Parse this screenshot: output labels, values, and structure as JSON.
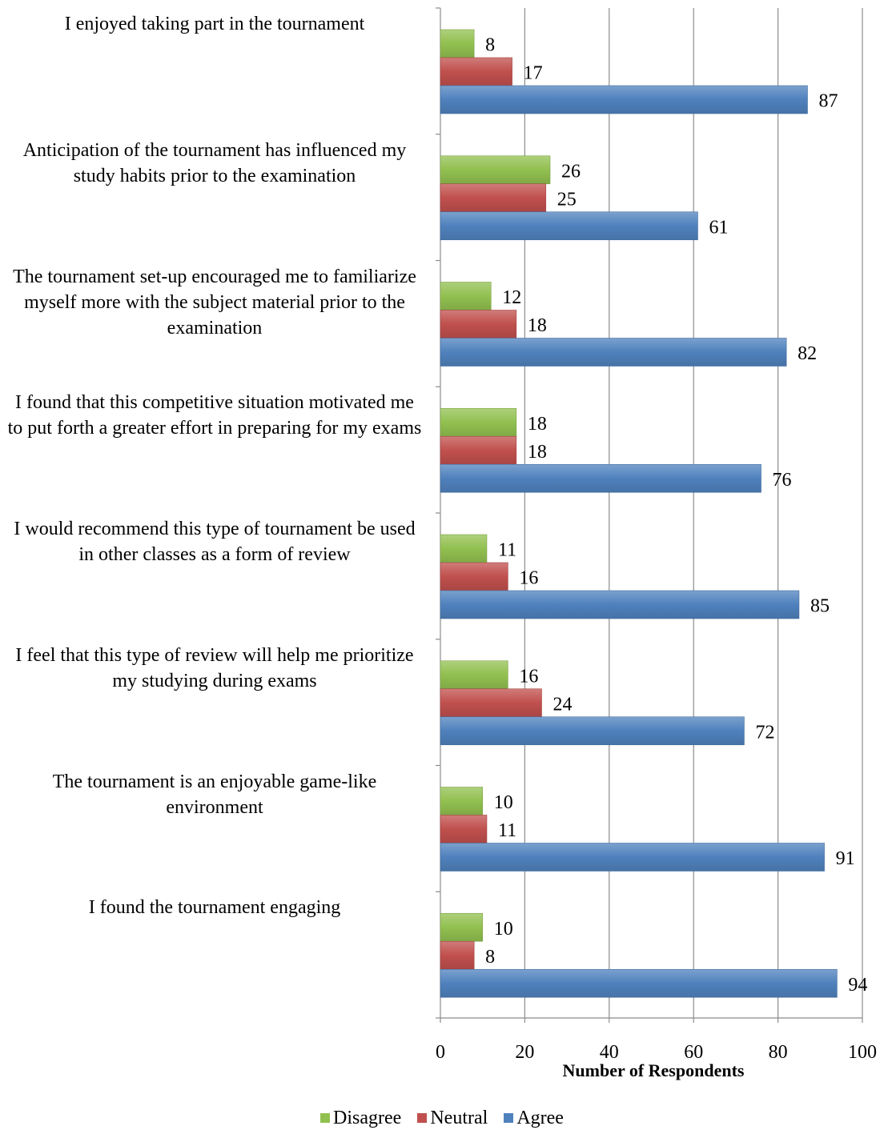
{
  "chart_data": {
    "type": "bar",
    "orientation": "horizontal",
    "categories": [
      "I enjoyed taking part in the tournament",
      "Anticipation of the tournament has influenced my study habits prior to the examination",
      "The tournament set-up encouraged me to familiarize myself more with the subject material prior to the examination",
      "I found that this competitive situation motivated me to put forth a greater effort in preparing for my exams",
      "I would recommend this type of tournament be used in other classes as a form of review",
      "I feel that this type of review will help me prioritize my studying during exams",
      "The tournament is an enjoyable game-like environment",
      "I found the tournament engaging"
    ],
    "series": [
      {
        "name": "Disagree",
        "color": "#92C050",
        "values": [
          8,
          26,
          12,
          18,
          11,
          16,
          10,
          10
        ]
      },
      {
        "name": "Neutral",
        "color": "#C0504D",
        "values": [
          17,
          25,
          18,
          18,
          16,
          24,
          11,
          8
        ]
      },
      {
        "name": "Agree",
        "color": "#4F81BD",
        "values": [
          87,
          61,
          82,
          76,
          85,
          72,
          91,
          94
        ]
      }
    ],
    "xlabel": "Number of Respondents",
    "xlim": [
      0,
      100
    ],
    "xticks": [
      0,
      20,
      40,
      60,
      80,
      100
    ],
    "grid": true,
    "legend_position": "bottom"
  }
}
